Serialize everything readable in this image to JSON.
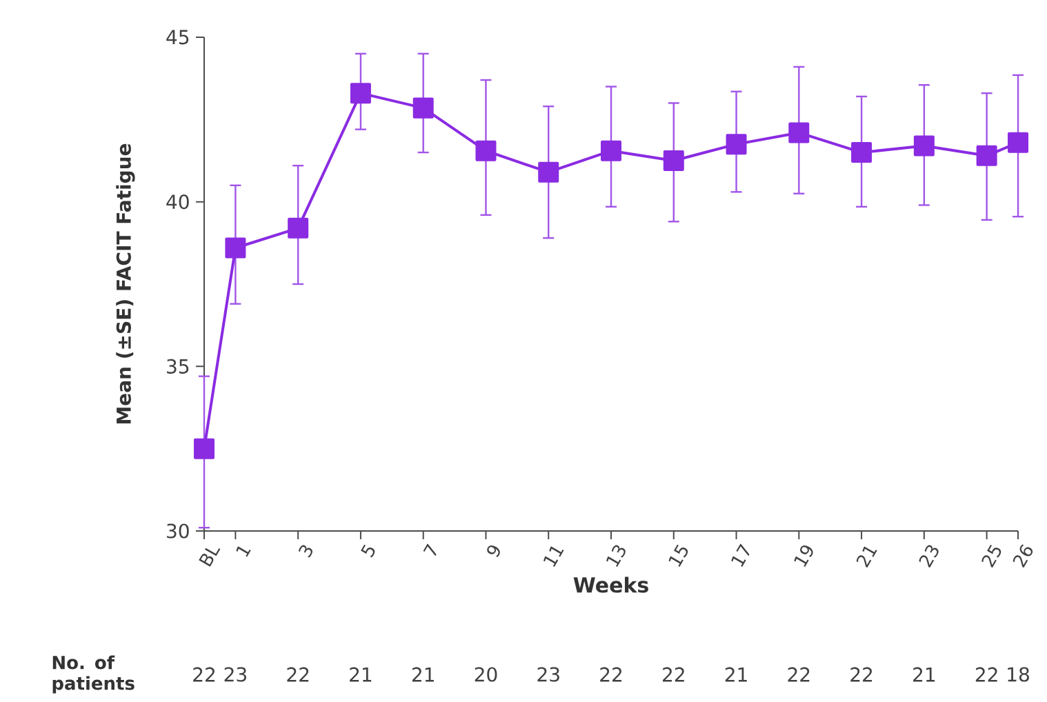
{
  "chart_data": {
    "type": "line",
    "xlabel": "Weeks",
    "ylabel": "Mean (±SE) FACIT Fatigue",
    "x": [
      0,
      1,
      3,
      5,
      7,
      9,
      11,
      13,
      15,
      17,
      19,
      21,
      23,
      25,
      26
    ],
    "series": [
      {
        "color": "#8a2be2",
        "values": [
          32.5,
          38.6,
          39.2,
          43.3,
          42.85,
          41.55,
          40.9,
          41.55,
          41.25,
          41.75,
          42.1,
          41.5,
          41.7,
          41.4,
          41.8
        ],
        "errors": [
          [
            30.1,
            34.7
          ],
          [
            36.9,
            40.5
          ],
          [
            37.5,
            41.1
          ],
          [
            42.2,
            44.5
          ],
          [
            41.5,
            44.5
          ],
          [
            39.6,
            43.7
          ],
          [
            38.9,
            42.9
          ],
          [
            39.85,
            43.5
          ],
          [
            39.4,
            43.0
          ],
          [
            40.3,
            43.35
          ],
          [
            40.25,
            44.1
          ],
          [
            39.85,
            43.2
          ],
          [
            39.9,
            43.55
          ],
          [
            39.45,
            43.3
          ],
          [
            39.55,
            43.85
          ]
        ]
      }
    ],
    "xlim": [
      0,
      26
    ],
    "ylim": [
      30,
      45
    ],
    "xticks": [
      {
        "value": 0,
        "label": "BL"
      },
      1,
      3,
      5,
      7,
      9,
      11,
      13,
      15,
      17,
      19,
      21,
      23,
      25,
      26
    ],
    "yticks": [
      30,
      35,
      40,
      45
    ],
    "grid": false,
    "marker": "square",
    "line_style": "solid",
    "annotations": [
      "No. of patients",
      "22",
      "23",
      "22",
      "21",
      "21",
      "20",
      "23",
      "22",
      "22",
      "21",
      "22",
      "22",
      "21",
      "22",
      "18"
    ]
  }
}
